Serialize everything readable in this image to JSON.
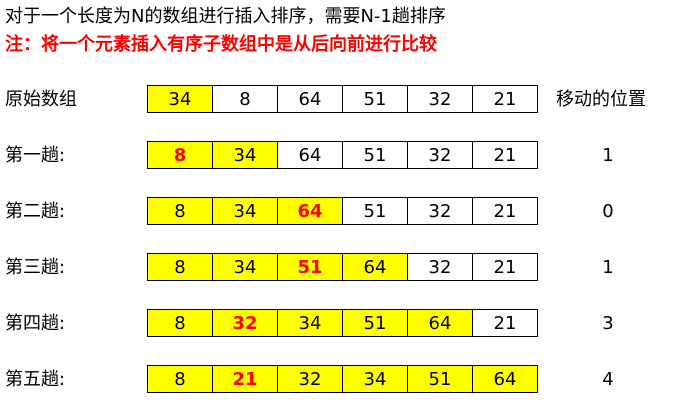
{
  "title": "对于一个长度为N的数组进行插入排序，需要N-1趟排序",
  "note": "注：将一个元素插入有序子数组中是从后向前进行比较",
  "position_header": "移动的位置",
  "colors": {
    "sorted_fill": "#ffff00",
    "moved_text": "#ff0000",
    "note_text": "#ff0000"
  },
  "rows": [
    {
      "label": "原始数组",
      "values": [
        "34",
        "8",
        "64",
        "51",
        "32",
        "21"
      ],
      "sorted_count": 1,
      "moved_index": -1,
      "moves": ""
    },
    {
      "label": "第一趟:",
      "values": [
        "8",
        "34",
        "64",
        "51",
        "32",
        "21"
      ],
      "sorted_count": 2,
      "moved_index": 0,
      "moves": "1"
    },
    {
      "label": "第二趟:",
      "values": [
        "8",
        "34",
        "64",
        "51",
        "32",
        "21"
      ],
      "sorted_count": 3,
      "moved_index": 2,
      "moves": "0"
    },
    {
      "label": "第三趟:",
      "values": [
        "8",
        "34",
        "51",
        "64",
        "32",
        "21"
      ],
      "sorted_count": 4,
      "moved_index": 2,
      "moves": "1"
    },
    {
      "label": "第四趟:",
      "values": [
        "8",
        "32",
        "34",
        "51",
        "64",
        "21"
      ],
      "sorted_count": 5,
      "moved_index": 1,
      "moves": "3"
    },
    {
      "label": "第五趟:",
      "values": [
        "8",
        "21",
        "32",
        "34",
        "51",
        "64"
      ],
      "sorted_count": 6,
      "moved_index": 1,
      "moves": "4"
    }
  ]
}
